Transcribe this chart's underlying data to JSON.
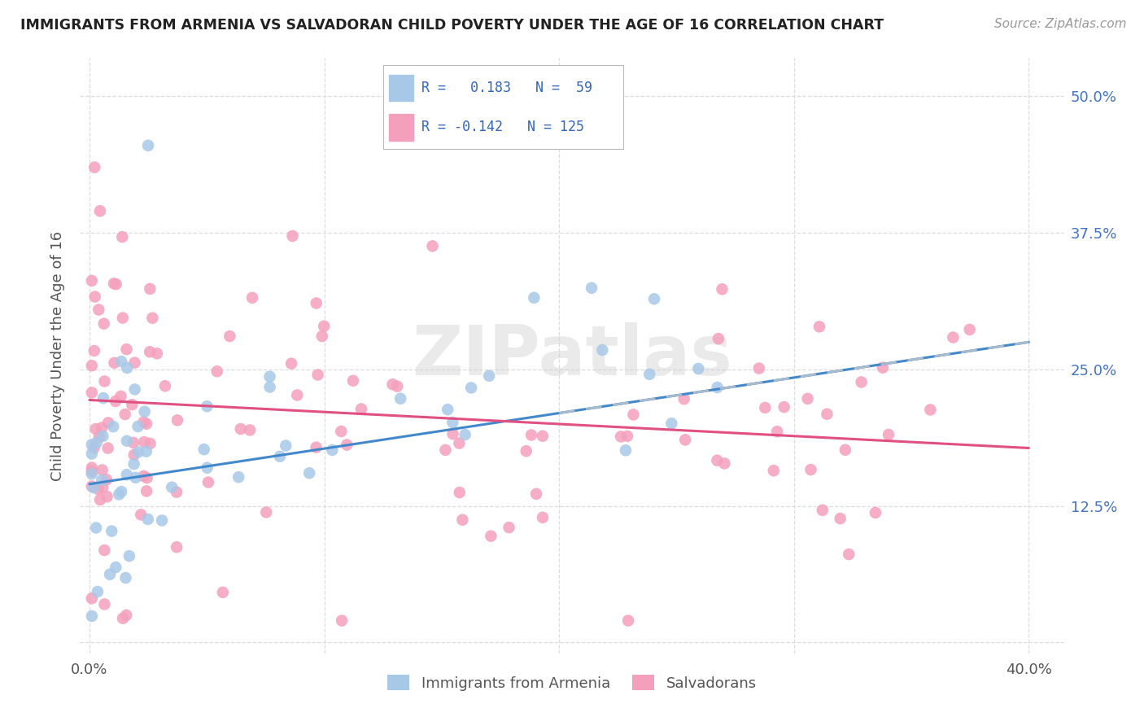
{
  "title": "IMMIGRANTS FROM ARMENIA VS SALVADORAN CHILD POVERTY UNDER THE AGE OF 16 CORRELATION CHART",
  "source": "Source: ZipAtlas.com",
  "ylabel": "Child Poverty Under the Age of 16",
  "color_armenia": "#A8C8E8",
  "color_salvadoran": "#F4A0BC",
  "line_color_armenia": "#4488CC",
  "line_color_salvadoran": "#E05080",
  "watermark": "ZIPatlas",
  "R_armenia": 0.183,
  "N_armenia": 59,
  "R_salvadoran": -0.142,
  "N_salvadoran": 125,
  "arm_line_start_x": 0.0,
  "arm_line_start_y": 0.145,
  "arm_line_end_x": 0.4,
  "arm_line_end_y": 0.275,
  "sal_line_start_x": 0.0,
  "sal_line_start_y": 0.222,
  "sal_line_end_x": 0.4,
  "sal_line_end_y": 0.178,
  "xlim_min": -0.004,
  "xlim_max": 0.415,
  "ylim_min": -0.01,
  "ylim_max": 0.535,
  "yticks": [
    0.0,
    0.125,
    0.25,
    0.375,
    0.5
  ],
  "ytick_labels": [
    "",
    "12.5%",
    "25.0%",
    "37.5%",
    "50.0%"
  ],
  "xticks": [
    0.0,
    0.1,
    0.2,
    0.3,
    0.4
  ],
  "xtick_labels": [
    "0.0%",
    "",
    "",
    "",
    "40.0%"
  ]
}
